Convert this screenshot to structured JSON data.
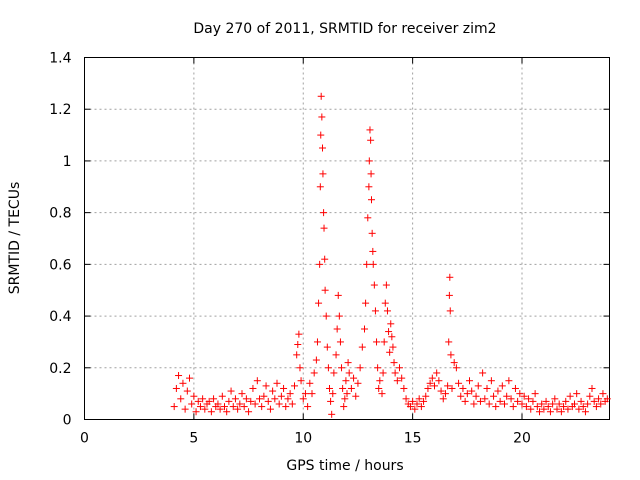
{
  "chart_data": {
    "type": "scatter",
    "title": "Day 270 of 2011, SRMTID for receiver zim2",
    "xlabel": "GPS time / hours",
    "ylabel": "SRMTID / TECUs",
    "xlim": [
      0,
      24
    ],
    "ylim": [
      0,
      1.4
    ],
    "xticks": [
      0,
      5,
      10,
      15,
      20
    ],
    "xtick_labels": [
      "0",
      "5",
      "10",
      "15",
      "20"
    ],
    "yticks": [
      0,
      0.2,
      0.4,
      0.6,
      0.8,
      1,
      1.2,
      1.4
    ],
    "ytick_labels": [
      "0",
      "0.2",
      "0.4",
      "0.6",
      "0.8",
      "1",
      "1.2",
      "1.4"
    ],
    "grid": true,
    "marker": "+",
    "color": "#ff0000",
    "series": [
      {
        "name": "SRMTID",
        "points": [
          [
            4.1,
            0.05
          ],
          [
            4.2,
            0.12
          ],
          [
            4.3,
            0.17
          ],
          [
            4.4,
            0.08
          ],
          [
            4.5,
            0.14
          ],
          [
            4.6,
            0.04
          ],
          [
            4.7,
            0.11
          ],
          [
            4.8,
            0.16
          ],
          [
            4.9,
            0.06
          ],
          [
            5.0,
            0.09
          ],
          [
            5.1,
            0.03
          ],
          [
            5.2,
            0.07
          ],
          [
            5.3,
            0.05
          ],
          [
            5.4,
            0.08
          ],
          [
            5.5,
            0.04
          ],
          [
            5.6,
            0.06
          ],
          [
            5.7,
            0.07
          ],
          [
            5.8,
            0.03
          ],
          [
            5.9,
            0.08
          ],
          [
            6.0,
            0.05
          ],
          [
            6.1,
            0.06
          ],
          [
            6.2,
            0.04
          ],
          [
            6.3,
            0.09
          ],
          [
            6.4,
            0.05
          ],
          [
            6.5,
            0.03
          ],
          [
            6.6,
            0.07
          ],
          [
            6.7,
            0.11
          ],
          [
            6.8,
            0.05
          ],
          [
            6.9,
            0.08
          ],
          [
            7.0,
            0.04
          ],
          [
            7.1,
            0.06
          ],
          [
            7.2,
            0.1
          ],
          [
            7.3,
            0.05
          ],
          [
            7.4,
            0.08
          ],
          [
            7.5,
            0.03
          ],
          [
            7.6,
            0.07
          ],
          [
            7.7,
            0.12
          ],
          [
            7.8,
            0.06
          ],
          [
            7.9,
            0.15
          ],
          [
            8.0,
            0.08
          ],
          [
            8.1,
            0.05
          ],
          [
            8.2,
            0.09
          ],
          [
            8.3,
            0.13
          ],
          [
            8.4,
            0.07
          ],
          [
            8.5,
            0.04
          ],
          [
            8.6,
            0.11
          ],
          [
            8.7,
            0.08
          ],
          [
            8.8,
            0.14
          ],
          [
            8.9,
            0.06
          ],
          [
            9.0,
            0.09
          ],
          [
            9.1,
            0.12
          ],
          [
            9.2,
            0.05
          ],
          [
            9.3,
            0.08
          ],
          [
            9.4,
            0.1
          ],
          [
            9.5,
            0.06
          ],
          [
            9.6,
            0.13
          ],
          [
            9.7,
            0.25
          ],
          [
            9.75,
            0.29
          ],
          [
            9.8,
            0.33
          ],
          [
            9.85,
            0.2
          ],
          [
            9.9,
            0.15
          ],
          [
            10.0,
            0.08
          ],
          [
            10.1,
            0.1
          ],
          [
            10.2,
            0.05
          ],
          [
            10.3,
            0.14
          ],
          [
            10.4,
            0.1
          ],
          [
            10.5,
            0.18
          ],
          [
            10.6,
            0.23
          ],
          [
            10.65,
            0.3
          ],
          [
            10.7,
            0.45
          ],
          [
            10.75,
            0.6
          ],
          [
            10.78,
            0.9
          ],
          [
            10.8,
            1.1
          ],
          [
            10.82,
            1.25
          ],
          [
            10.85,
            1.17
          ],
          [
            10.88,
            1.05
          ],
          [
            10.9,
            0.95
          ],
          [
            10.93,
            0.8
          ],
          [
            10.95,
            0.74
          ],
          [
            10.98,
            0.62
          ],
          [
            11.0,
            0.5
          ],
          [
            11.05,
            0.4
          ],
          [
            11.1,
            0.28
          ],
          [
            11.15,
            0.2
          ],
          [
            11.2,
            0.12
          ],
          [
            11.25,
            0.07
          ],
          [
            11.3,
            0.02
          ],
          [
            11.35,
            0.1
          ],
          [
            11.4,
            0.18
          ],
          [
            11.5,
            0.25
          ],
          [
            11.55,
            0.35
          ],
          [
            11.6,
            0.48
          ],
          [
            11.65,
            0.4
          ],
          [
            11.7,
            0.3
          ],
          [
            11.75,
            0.2
          ],
          [
            11.8,
            0.12
          ],
          [
            11.85,
            0.05
          ],
          [
            11.9,
            0.08
          ],
          [
            11.95,
            0.15
          ],
          [
            12.0,
            0.1
          ],
          [
            12.05,
            0.22
          ],
          [
            12.1,
            0.18
          ],
          [
            12.2,
            0.12
          ],
          [
            12.3,
            0.16
          ],
          [
            12.4,
            0.09
          ],
          [
            12.5,
            0.14
          ],
          [
            12.6,
            0.2
          ],
          [
            12.7,
            0.28
          ],
          [
            12.8,
            0.35
          ],
          [
            12.85,
            0.45
          ],
          [
            12.9,
            0.6
          ],
          [
            12.95,
            0.78
          ],
          [
            13.0,
            0.9
          ],
          [
            13.02,
            1.0
          ],
          [
            13.05,
            1.12
          ],
          [
            13.08,
            1.08
          ],
          [
            13.1,
            0.95
          ],
          [
            13.12,
            0.85
          ],
          [
            13.15,
            0.72
          ],
          [
            13.18,
            0.65
          ],
          [
            13.2,
            0.6
          ],
          [
            13.25,
            0.52
          ],
          [
            13.3,
            0.42
          ],
          [
            13.35,
            0.3
          ],
          [
            13.4,
            0.2
          ],
          [
            13.45,
            0.12
          ],
          [
            13.5,
            0.15
          ],
          [
            13.6,
            0.1
          ],
          [
            13.65,
            0.18
          ],
          [
            13.7,
            0.3
          ],
          [
            13.75,
            0.45
          ],
          [
            13.8,
            0.52
          ],
          [
            13.85,
            0.42
          ],
          [
            13.9,
            0.34
          ],
          [
            13.95,
            0.26
          ],
          [
            14.0,
            0.37
          ],
          [
            14.05,
            0.32
          ],
          [
            14.1,
            0.28
          ],
          [
            14.15,
            0.22
          ],
          [
            14.2,
            0.18
          ],
          [
            14.3,
            0.15
          ],
          [
            14.4,
            0.2
          ],
          [
            14.5,
            0.16
          ],
          [
            14.6,
            0.12
          ],
          [
            14.7,
            0.08
          ],
          [
            14.8,
            0.06
          ],
          [
            14.9,
            0.05
          ],
          [
            15.0,
            0.07
          ],
          [
            15.1,
            0.04
          ],
          [
            15.2,
            0.06
          ],
          [
            15.3,
            0.08
          ],
          [
            15.4,
            0.05
          ],
          [
            15.5,
            0.07
          ],
          [
            15.6,
            0.09
          ],
          [
            15.7,
            0.12
          ],
          [
            15.8,
            0.14
          ],
          [
            15.9,
            0.16
          ],
          [
            16.0,
            0.13
          ],
          [
            16.1,
            0.18
          ],
          [
            16.2,
            0.15
          ],
          [
            16.3,
            0.11
          ],
          [
            16.4,
            0.08
          ],
          [
            16.5,
            0.1
          ],
          [
            16.6,
            0.13
          ],
          [
            16.65,
            0.3
          ],
          [
            16.68,
            0.48
          ],
          [
            16.7,
            0.55
          ],
          [
            16.72,
            0.42
          ],
          [
            16.75,
            0.25
          ],
          [
            16.8,
            0.12
          ],
          [
            16.9,
            0.22
          ],
          [
            17.0,
            0.2
          ],
          [
            17.1,
            0.14
          ],
          [
            17.2,
            0.09
          ],
          [
            17.3,
            0.12
          ],
          [
            17.4,
            0.07
          ],
          [
            17.5,
            0.1
          ],
          [
            17.6,
            0.15
          ],
          [
            17.7,
            0.11
          ],
          [
            17.8,
            0.06
          ],
          [
            17.9,
            0.09
          ],
          [
            18.0,
            0.13
          ],
          [
            18.1,
            0.07
          ],
          [
            18.2,
            0.18
          ],
          [
            18.3,
            0.08
          ],
          [
            18.4,
            0.12
          ],
          [
            18.5,
            0.06
          ],
          [
            18.6,
            0.15
          ],
          [
            18.7,
            0.09
          ],
          [
            18.8,
            0.05
          ],
          [
            18.9,
            0.11
          ],
          [
            19.0,
            0.07
          ],
          [
            19.1,
            0.13
          ],
          [
            19.2,
            0.06
          ],
          [
            19.3,
            0.09
          ],
          [
            19.4,
            0.15
          ],
          [
            19.5,
            0.08
          ],
          [
            19.6,
            0.05
          ],
          [
            19.7,
            0.12
          ],
          [
            19.8,
            0.07
          ],
          [
            19.9,
            0.1
          ],
          [
            20.0,
            0.06
          ],
          [
            20.1,
            0.09
          ],
          [
            20.2,
            0.05
          ],
          [
            20.3,
            0.08
          ],
          [
            20.4,
            0.04
          ],
          [
            20.5,
            0.07
          ],
          [
            20.6,
            0.1
          ],
          [
            20.7,
            0.05
          ],
          [
            20.8,
            0.03
          ],
          [
            20.9,
            0.06
          ],
          [
            21.0,
            0.04
          ],
          [
            21.1,
            0.07
          ],
          [
            21.2,
            0.05
          ],
          [
            21.3,
            0.03
          ],
          [
            21.4,
            0.06
          ],
          [
            21.5,
            0.08
          ],
          [
            21.6,
            0.04
          ],
          [
            21.7,
            0.06
          ],
          [
            21.8,
            0.03
          ],
          [
            21.9,
            0.05
          ],
          [
            22.0,
            0.07
          ],
          [
            22.1,
            0.04
          ],
          [
            22.2,
            0.09
          ],
          [
            22.3,
            0.05
          ],
          [
            22.4,
            0.06
          ],
          [
            22.5,
            0.1
          ],
          [
            22.6,
            0.04
          ],
          [
            22.7,
            0.07
          ],
          [
            22.8,
            0.05
          ],
          [
            22.9,
            0.03
          ],
          [
            23.0,
            0.06
          ],
          [
            23.1,
            0.09
          ],
          [
            23.2,
            0.12
          ],
          [
            23.3,
            0.07
          ],
          [
            23.4,
            0.05
          ],
          [
            23.5,
            0.08
          ],
          [
            23.6,
            0.06
          ],
          [
            23.7,
            0.1
          ],
          [
            23.8,
            0.07
          ],
          [
            23.9,
            0.08
          ]
        ]
      }
    ]
  }
}
